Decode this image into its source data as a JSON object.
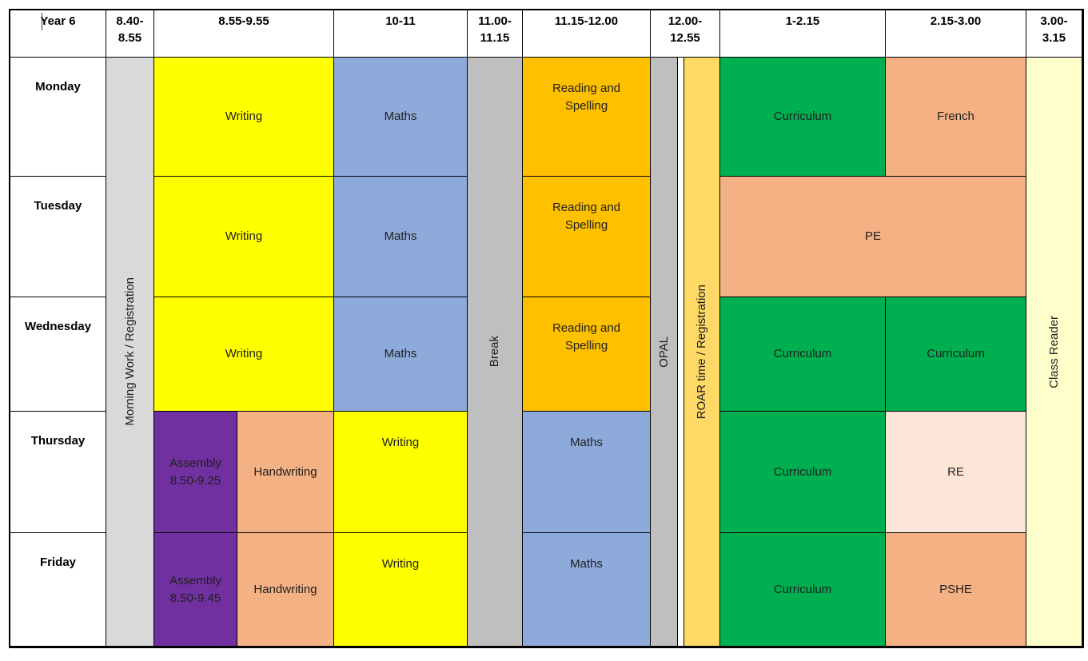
{
  "header": {
    "year_label": "Year 6",
    "time_slots": [
      "8.40-8.55",
      "8.55-9.55",
      "10-11",
      "11.00-11.15",
      "11.15-12.00",
      "12.00-12.55",
      "1-2.15",
      "2.15-3.00",
      "3.00-3.15"
    ]
  },
  "days": [
    "Monday",
    "Tuesday",
    "Wednesday",
    "Thursday",
    "Friday"
  ],
  "full_day_columns": {
    "morning_registration": "Morning Work / Registration",
    "break": "Break",
    "opal": "OPAL",
    "roar": "ROAR time / Registration",
    "class_reader": "Class Reader"
  },
  "lessons": {
    "monday": {
      "s1": "Writing",
      "s2": "Maths",
      "s3": "Reading and Spelling",
      "s4": "Curriculum",
      "s5": "French"
    },
    "tuesday": {
      "s1": "Writing",
      "s2": "Maths",
      "s3": "Reading and Spelling",
      "s45": "PE"
    },
    "wednesday": {
      "s1": "Writing",
      "s2": "Maths",
      "s3": "Reading and Spelling",
      "s4": "Curriculum",
      "s5": "Curriculum"
    },
    "thursday": {
      "assembly": "Assembly 8.50-9.25",
      "handwriting": "Handwriting",
      "s2": "Writing",
      "s3": "Maths",
      "s4": "Curriculum",
      "s5": "RE"
    },
    "friday": {
      "assembly": "Assembly 8.50-9.45",
      "handwriting": "Handwriting",
      "s2": "Writing",
      "s3": "Maths",
      "s4": "Curriculum",
      "s5": "PSHE"
    }
  },
  "colors": {
    "writing": "#FFFF00",
    "maths": "#8EAADB",
    "reading_spelling": "#FFC000",
    "curriculum": "#00B050",
    "peach": "#F4B183",
    "re": "#FCE4D6",
    "assembly": "#7030A0",
    "morning_registration": "#D9D9D9",
    "break_opal": "#BFBFBF",
    "roar": "#FFD966",
    "class_reader": "#FFFFCC",
    "grid_line": "#000000"
  }
}
